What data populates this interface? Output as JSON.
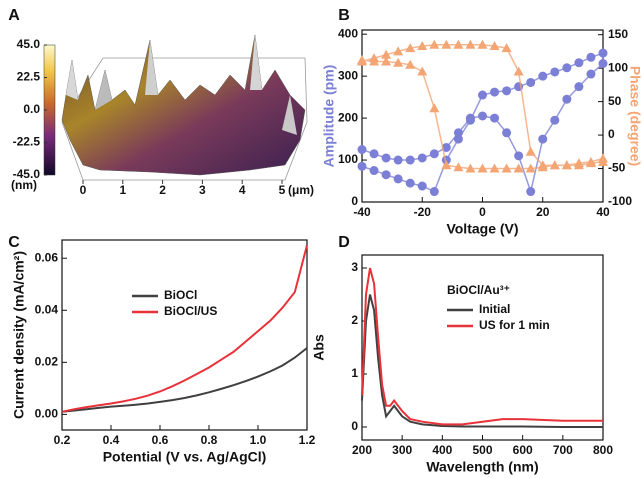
{
  "chart_data": [
    {
      "type": "surface",
      "panel_label": "A",
      "xlim": [
        0,
        5
      ],
      "xticks": [
        0,
        1,
        2,
        3,
        4,
        5
      ],
      "xlabel": "(μm)",
      "colorbar": {
        "lim": [
          -45,
          45
        ],
        "label": "(nm)",
        "ticks": [
          {
            "value": 45,
            "label": "45.0"
          },
          {
            "value": 22.5,
            "label": "22.5"
          },
          {
            "value": 0,
            "label": "0.0"
          },
          {
            "value": -22.5,
            "label": "-22.5"
          },
          {
            "value": -45,
            "label": "-45.0"
          }
        ]
      }
    },
    {
      "type": "scatter-line",
      "panel_label": "B",
      "xlabel": "Voltage (V)",
      "ylabel": "Amplitude (pm)",
      "y2label": "Phase (degree)",
      "xlim": [
        -40,
        40
      ],
      "xticks": [
        -40,
        -20,
        0,
        20,
        40
      ],
      "ylim": [
        0,
        410
      ],
      "yticks": [
        0,
        100,
        200,
        300,
        400
      ],
      "y2lim": [
        -100,
        157
      ],
      "y2ticks": [
        -100,
        -50,
        0,
        50,
        100,
        150
      ],
      "x": [
        -40,
        -36,
        -32,
        -28,
        -24,
        -20,
        -16,
        -12,
        -8,
        -4,
        0,
        4,
        8,
        12,
        16,
        20,
        24,
        28,
        32,
        36,
        40,
        40,
        36,
        32,
        28,
        24,
        20,
        16,
        12,
        8,
        4,
        0,
        -4,
        -8,
        -12,
        -16,
        -20,
        -24,
        -28,
        -32,
        -36,
        -40
      ],
      "series": [
        {
          "color": "#7b7fd6",
          "marker": "circle",
          "axis": "y",
          "values": [
            85,
            75,
            65,
            55,
            45,
            38,
            25,
            100,
            150,
            195,
            255,
            262,
            265,
            275,
            285,
            300,
            310,
            320,
            332,
            345,
            355,
            330,
            305,
            275,
            245,
            195,
            150,
            25,
            110,
            165,
            200,
            205,
            200,
            165,
            130,
            115,
            105,
            100,
            100,
            105,
            115,
            125
          ]
        },
        {
          "color": "#f4a574",
          "marker": "triangle",
          "axis": "y2",
          "values": [
            110,
            115,
            120,
            125,
            130,
            133,
            135,
            135,
            135,
            135,
            135,
            133,
            130,
            95,
            -25,
            -45,
            -45,
            -45,
            -42,
            -40,
            -35,
            -40,
            -42,
            -45,
            -45,
            -45,
            -48,
            -50,
            -50,
            -50,
            -50,
            -50,
            -50,
            -48,
            -45,
            40,
            95,
            105,
            108,
            110,
            110,
            112
          ]
        }
      ]
    },
    {
      "type": "line",
      "panel_label": "C",
      "xlabel": "Potential (V vs. Ag/AgCl)",
      "ylabel": "Current density (mA/cm²)",
      "xlim": [
        0.2,
        1.2
      ],
      "xticks": [
        0.2,
        0.4,
        0.6,
        0.8,
        {
          "value": 1,
          "label": "1.0"
        },
        1.2
      ],
      "ylim": [
        -0.006,
        0.067
      ],
      "yticks": [
        {
          "value": 0,
          "label": "0.00"
        },
        0.02,
        0.04,
        0.06
      ],
      "x": [
        0.2,
        0.25,
        0.3,
        0.35,
        0.4,
        0.45,
        0.5,
        0.55,
        0.6,
        0.65,
        0.7,
        0.75,
        0.8,
        0.85,
        0.9,
        0.95,
        1.0,
        1.05,
        1.1,
        1.15,
        1.2
      ],
      "series": [
        {
          "name": "BiOCl",
          "color": "#404040",
          "values": [
            0.001,
            0.0015,
            0.002,
            0.0025,
            0.003,
            0.0033,
            0.0037,
            0.0042,
            0.0048,
            0.0055,
            0.0063,
            0.0073,
            0.0085,
            0.0098,
            0.0112,
            0.0128,
            0.0145,
            0.0165,
            0.0188,
            0.0218,
            0.0255
          ]
        },
        {
          "name": "BiOCl/US",
          "color": "#e8323a",
          "values": [
            0.001,
            0.002,
            0.0028,
            0.0035,
            0.0042,
            0.005,
            0.006,
            0.0072,
            0.0088,
            0.0108,
            0.013,
            0.0155,
            0.018,
            0.021,
            0.024,
            0.028,
            0.032,
            0.036,
            0.041,
            0.047,
            0.065
          ]
        }
      ]
    },
    {
      "type": "line",
      "panel_label": "D",
      "xlabel": "Wavelength (nm)",
      "ylabel": "Abs",
      "annotation": "BiOCl/Au³⁺",
      "xlim": [
        200,
        800
      ],
      "xticks": [
        200,
        300,
        400,
        500,
        600,
        700,
        800
      ],
      "ylim": [
        -0.245,
        3.245
      ],
      "yticks": [
        0,
        1,
        2,
        3
      ],
      "x": [
        200,
        210,
        220,
        230,
        240,
        250,
        260,
        270,
        280,
        290,
        300,
        320,
        350,
        400,
        450,
        500,
        550,
        600,
        700,
        800
      ],
      "series": [
        {
          "name": "Initial",
          "color": "#404040",
          "values": [
            0.5,
            2.0,
            2.5,
            2.2,
            1.3,
            0.6,
            0.2,
            0.3,
            0.4,
            0.3,
            0.2,
            0.1,
            0.05,
            0.02,
            0.01,
            0.01,
            0.01,
            0.01,
            0,
            0
          ]
        },
        {
          "name": "US for 1 min",
          "color": "#e8323a",
          "values": [
            0.6,
            2.5,
            3.0,
            2.7,
            1.7,
            0.8,
            0.4,
            0.4,
            0.5,
            0.4,
            0.3,
            0.15,
            0.1,
            0.05,
            0.05,
            0.1,
            0.15,
            0.15,
            0.12,
            0.12
          ]
        }
      ]
    }
  ]
}
